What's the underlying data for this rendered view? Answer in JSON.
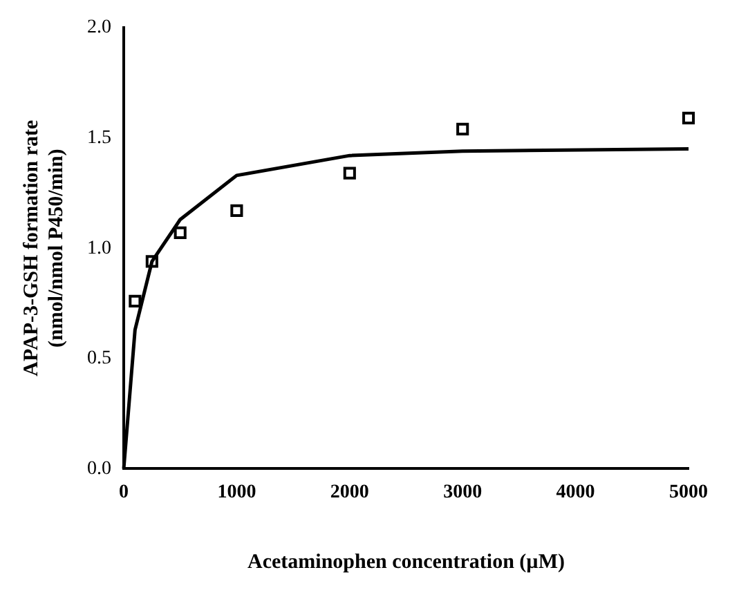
{
  "chart_data": {
    "type": "scatter",
    "xlabel": "Acetaminophen concentration (µM)",
    "ylabel": "APAP-3-GSH formation rate\n(nmol/nmol P450/min)",
    "xlim": [
      0,
      5000
    ],
    "xticks": [
      0,
      1000,
      2000,
      3000,
      4000,
      5000
    ],
    "ylim": [
      0,
      2
    ],
    "yticks": [
      {
        "value": 0,
        "label": "0.0"
      },
      {
        "value": 0.5,
        "label": "0.5"
      },
      {
        "value": 1,
        "label": "1.0"
      },
      {
        "value": 1.5,
        "label": "1.5"
      },
      {
        "value": 2,
        "label": "2.0"
      }
    ],
    "grid": false,
    "legend": false,
    "series": [
      {
        "marker": "square",
        "color": "#000000",
        "x": [
          100,
          250,
          500,
          1000,
          2000,
          3000,
          5000
        ],
        "values": [
          0.76,
          0.94,
          1.07,
          1.17,
          1.34,
          1.54,
          1.59
        ]
      },
      {
        "type": "line",
        "marker": "none",
        "line_style": "solid",
        "color": "#000000",
        "x": [
          0,
          100,
          250,
          500,
          1000,
          2000,
          3000,
          5000
        ],
        "values": [
          0,
          0.63,
          0.94,
          1.13,
          1.33,
          1.42,
          1.44,
          1.45
        ]
      }
    ]
  }
}
